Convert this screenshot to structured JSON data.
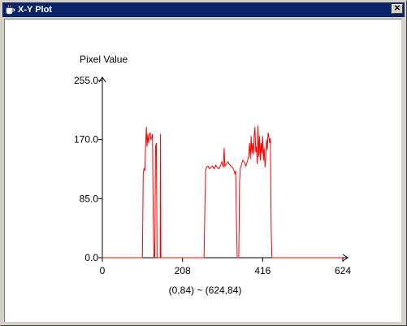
{
  "window": {
    "title": "X-Y Plot",
    "close_glyph": "✕",
    "icon": "coffee-cup-icon"
  },
  "colors": {
    "titlebar": "#0a246a",
    "series": "#ff0000",
    "axis": "#000000"
  },
  "chart_data": {
    "type": "line",
    "ylabel": "Pixel Value",
    "xlabel": "",
    "range_label": "(0,84) ~ (624,84)",
    "xlim": [
      0,
      624
    ],
    "ylim": [
      0,
      255
    ],
    "x_ticks": [
      "0",
      "208",
      "416",
      "624"
    ],
    "x_tick_values": [
      0,
      208,
      416,
      624
    ],
    "y_ticks": [
      "0.0",
      "85.0",
      "170.0",
      "255.0"
    ],
    "y_tick_values": [
      0,
      85,
      170,
      255
    ],
    "series": [
      {
        "points": [
          [
            0,
            0
          ],
          [
            100,
            0
          ],
          [
            104,
            0
          ],
          [
            106,
            120
          ],
          [
            108,
            128
          ],
          [
            110,
            125
          ],
          [
            112,
            155
          ],
          [
            114,
            188
          ],
          [
            116,
            160
          ],
          [
            118,
            178
          ],
          [
            120,
            165
          ],
          [
            122,
            175
          ],
          [
            124,
            180
          ],
          [
            126,
            170
          ],
          [
            128,
            172
          ],
          [
            130,
            178
          ],
          [
            132,
            60
          ],
          [
            134,
            0
          ],
          [
            136,
            0
          ],
          [
            138,
            160
          ],
          [
            140,
            165
          ],
          [
            142,
            0
          ],
          [
            144,
            0
          ],
          [
            148,
            0
          ],
          [
            150,
            0
          ],
          [
            151,
            178
          ],
          [
            152,
            0
          ],
          [
            154,
            0
          ],
          [
            190,
            0
          ],
          [
            214,
            0
          ],
          [
            258,
            0
          ],
          [
            264,
            0
          ],
          [
            266,
            70
          ],
          [
            268,
            125
          ],
          [
            270,
            130
          ],
          [
            274,
            132
          ],
          [
            278,
            128
          ],
          [
            282,
            130
          ],
          [
            286,
            132
          ],
          [
            290,
            128
          ],
          [
            294,
            133
          ],
          [
            298,
            130
          ],
          [
            302,
            128
          ],
          [
            306,
            132
          ],
          [
            310,
            138
          ],
          [
            314,
            130
          ],
          [
            316,
            158
          ],
          [
            318,
            132
          ],
          [
            322,
            135
          ],
          [
            326,
            138
          ],
          [
            330,
            134
          ],
          [
            334,
            132
          ],
          [
            338,
            130
          ],
          [
            342,
            125
          ],
          [
            344,
            120
          ],
          [
            346,
            125
          ],
          [
            348,
            50
          ],
          [
            350,
            0
          ],
          [
            354,
            0
          ],
          [
            356,
            110
          ],
          [
            358,
            128
          ],
          [
            360,
            132
          ],
          [
            364,
            140
          ],
          [
            368,
            138
          ],
          [
            372,
            132
          ],
          [
            376,
            138
          ],
          [
            380,
            148
          ],
          [
            382,
            165
          ],
          [
            384,
            142
          ],
          [
            386,
            175
          ],
          [
            388,
            150
          ],
          [
            390,
            165
          ],
          [
            392,
            148
          ],
          [
            394,
            175
          ],
          [
            396,
            188
          ],
          [
            398,
            152
          ],
          [
            400,
            160
          ],
          [
            402,
            135
          ],
          [
            404,
            190
          ],
          [
            406,
            145
          ],
          [
            408,
            175
          ],
          [
            410,
            140
          ],
          [
            412,
            165
          ],
          [
            414,
            150
          ],
          [
            416,
            175
          ],
          [
            418,
            140
          ],
          [
            420,
            158
          ],
          [
            422,
            130
          ],
          [
            424,
            145
          ],
          [
            426,
            170
          ],
          [
            428,
            155
          ],
          [
            430,
            180
          ],
          [
            432,
            175
          ],
          [
            434,
            165
          ],
          [
            436,
            172
          ],
          [
            438,
            40
          ],
          [
            440,
            0
          ],
          [
            495,
            0
          ],
          [
            520,
            0
          ],
          [
            544,
            0
          ],
          [
            552,
            0
          ],
          [
            568,
            0
          ],
          [
            624,
            0
          ]
        ]
      }
    ]
  }
}
